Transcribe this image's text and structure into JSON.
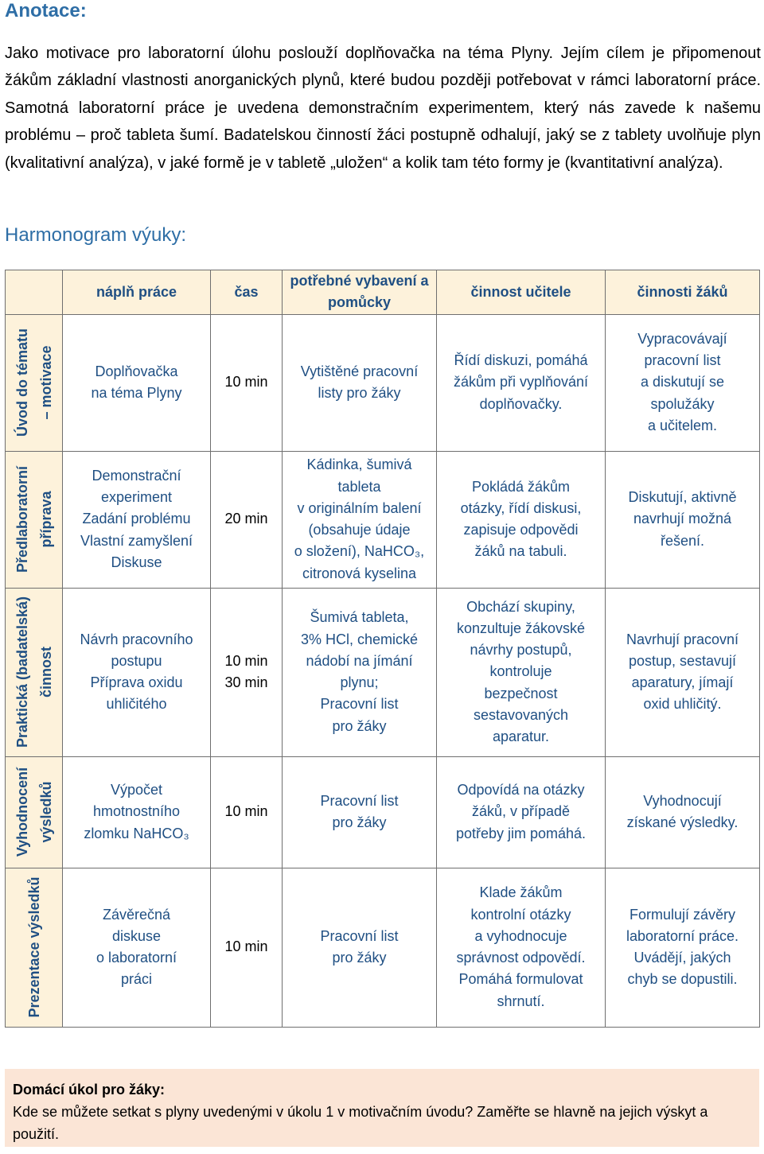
{
  "annotation": {
    "heading": "Anotace:",
    "text": "Jako motivace pro laboratorní úlohu poslouží doplňovačka na téma Plyny. Jejím cílem je připomenout žákům základní vlastnosti anorganických plynů, které budou později potřebovat v rámci laboratorní práce. Samotná laboratorní práce je uvedena demonstračním experimentem, který nás zavede k našemu problému – proč tableta šumí. Badatelskou činností žáci postupně odhalují, jaký se z tablety uvolňuje plyn (kvalitativní analýza), v jaké formě je v tabletě „uložen“ a kolik tam této formy je (kvantitativní analýza)."
  },
  "schedule": {
    "heading": "Harmonogram výuky:",
    "columns": [
      "náplň práce",
      "čas",
      "potřebné vybavení a pomůcky",
      "činnost učitele",
      "činnosti žáků"
    ],
    "phases": [
      {
        "label": [
          "Úvod do tématu",
          "– motivace"
        ],
        "work": [
          "Doplňovačka",
          "na téma Plyny"
        ],
        "time": [
          "10 min"
        ],
        "equipment": [
          "Vytištěné pracovní",
          "listy pro žáky"
        ],
        "teacher": [
          "Řídí diskuzi, pomáhá",
          "žákům při vyplňování",
          "doplňovačky."
        ],
        "students": [
          "Vypracovávají",
          "pracovní list",
          "a diskutují se",
          "spolužáky",
          "a učitelem."
        ]
      },
      {
        "label": [
          "Předlaboratorní",
          "příprava"
        ],
        "work": [
          "Demonstrační",
          "experiment",
          "Zadání problému",
          "Vlastní zamyšlení",
          "Diskuse"
        ],
        "time": [
          "20 min"
        ],
        "equipment": [
          "Kádinka, šumivá",
          "tableta",
          "v originálním balení",
          "(obsahuje údaje",
          "o složení), NaHCO₃,",
          "citronová kyselina"
        ],
        "teacher": [
          "Pokládá žákům",
          "otázky, řídí diskusi,",
          "zapisuje odpovědi",
          "žáků na tabuli."
        ],
        "students": [
          "Diskutují, aktivně",
          "navrhují možná",
          "řešení."
        ]
      },
      {
        "label": [
          "Praktická (badatelská)",
          "činnost"
        ],
        "work": [
          "Návrh pracovního",
          "postupu",
          "Příprava oxidu",
          "uhličitého"
        ],
        "time": [
          "10 min",
          "30 min"
        ],
        "equipment": [
          "Šumivá tableta,",
          "3% HCl, chemické",
          "nádobí na jímání",
          "plynu;",
          "Pracovní list",
          "pro žáky"
        ],
        "teacher": [
          "Obchází skupiny,",
          "konzultuje žákovské",
          "návrhy postupů,",
          "kontroluje",
          "bezpečnost",
          "sestavovaných",
          "aparatur."
        ],
        "students": [
          "Navrhují pracovní",
          "postup, sestavují",
          "aparatury, jímají",
          "oxid uhličitý."
        ]
      },
      {
        "label": [
          "Vyhodnocení",
          "výsledků"
        ],
        "work": [
          "Výpočet",
          "hmotnostního",
          "zlomku NaHCO₃"
        ],
        "time": [
          "10 min"
        ],
        "equipment": [
          "Pracovní list",
          "pro žáky"
        ],
        "teacher": [
          "Odpovídá na otázky",
          "žáků, v případě",
          "potřeby jim pomáhá."
        ],
        "students": [
          "Vyhodnocují",
          "získané výsledky."
        ]
      },
      {
        "label": [
          "Prezentace výsledků"
        ],
        "work": [
          "Závěrečná",
          "diskuse",
          "o laboratorní",
          "práci"
        ],
        "time": [
          "10 min"
        ],
        "equipment": [
          "Pracovní list",
          "pro žáky"
        ],
        "teacher": [
          "Klade žákům",
          "kontrolní otázky",
          "a vyhodnocuje",
          "správnost odpovědí.",
          "Pomáhá formulovat",
          "shrnutí."
        ],
        "students": [
          "Formulují závěry",
          "laboratorní práce.",
          "Uvádějí, jakých",
          "chyb se dopustili."
        ]
      }
    ]
  },
  "homework": {
    "title": "Domácí úkol pro žáky:",
    "text": "Kde se můžete setkat s plyny uvedenými v úkolu 1 v motivačním úvodu? Zaměřte se hlavně na jejich výskyt a použití."
  }
}
